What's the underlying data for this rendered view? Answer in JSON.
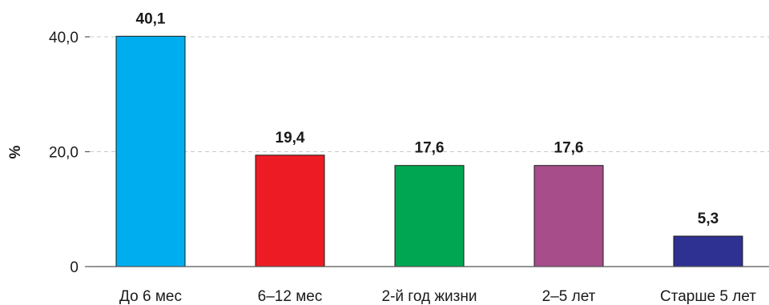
{
  "chart_data": {
    "type": "bar",
    "title": "",
    "xlabel": "",
    "ylabel": "%",
    "ylim": [
      0,
      40
    ],
    "yticks": [
      0,
      20,
      40
    ],
    "ytick_labels": [
      "0",
      "20,0",
      "40,0"
    ],
    "grid": true,
    "categories": [
      "До 6 мес",
      "6–12 мес",
      "2-й год жизни",
      "2–5 лет",
      "Старше 5 лет"
    ],
    "values": [
      40.1,
      19.4,
      17.6,
      17.6,
      5.3
    ],
    "value_labels": [
      "40,1",
      "19,4",
      "17,6",
      "17,6",
      "5,3"
    ],
    "colors": [
      "#00aeef",
      "#ed1c24",
      "#00a651",
      "#a64d8a",
      "#2e3192"
    ]
  }
}
